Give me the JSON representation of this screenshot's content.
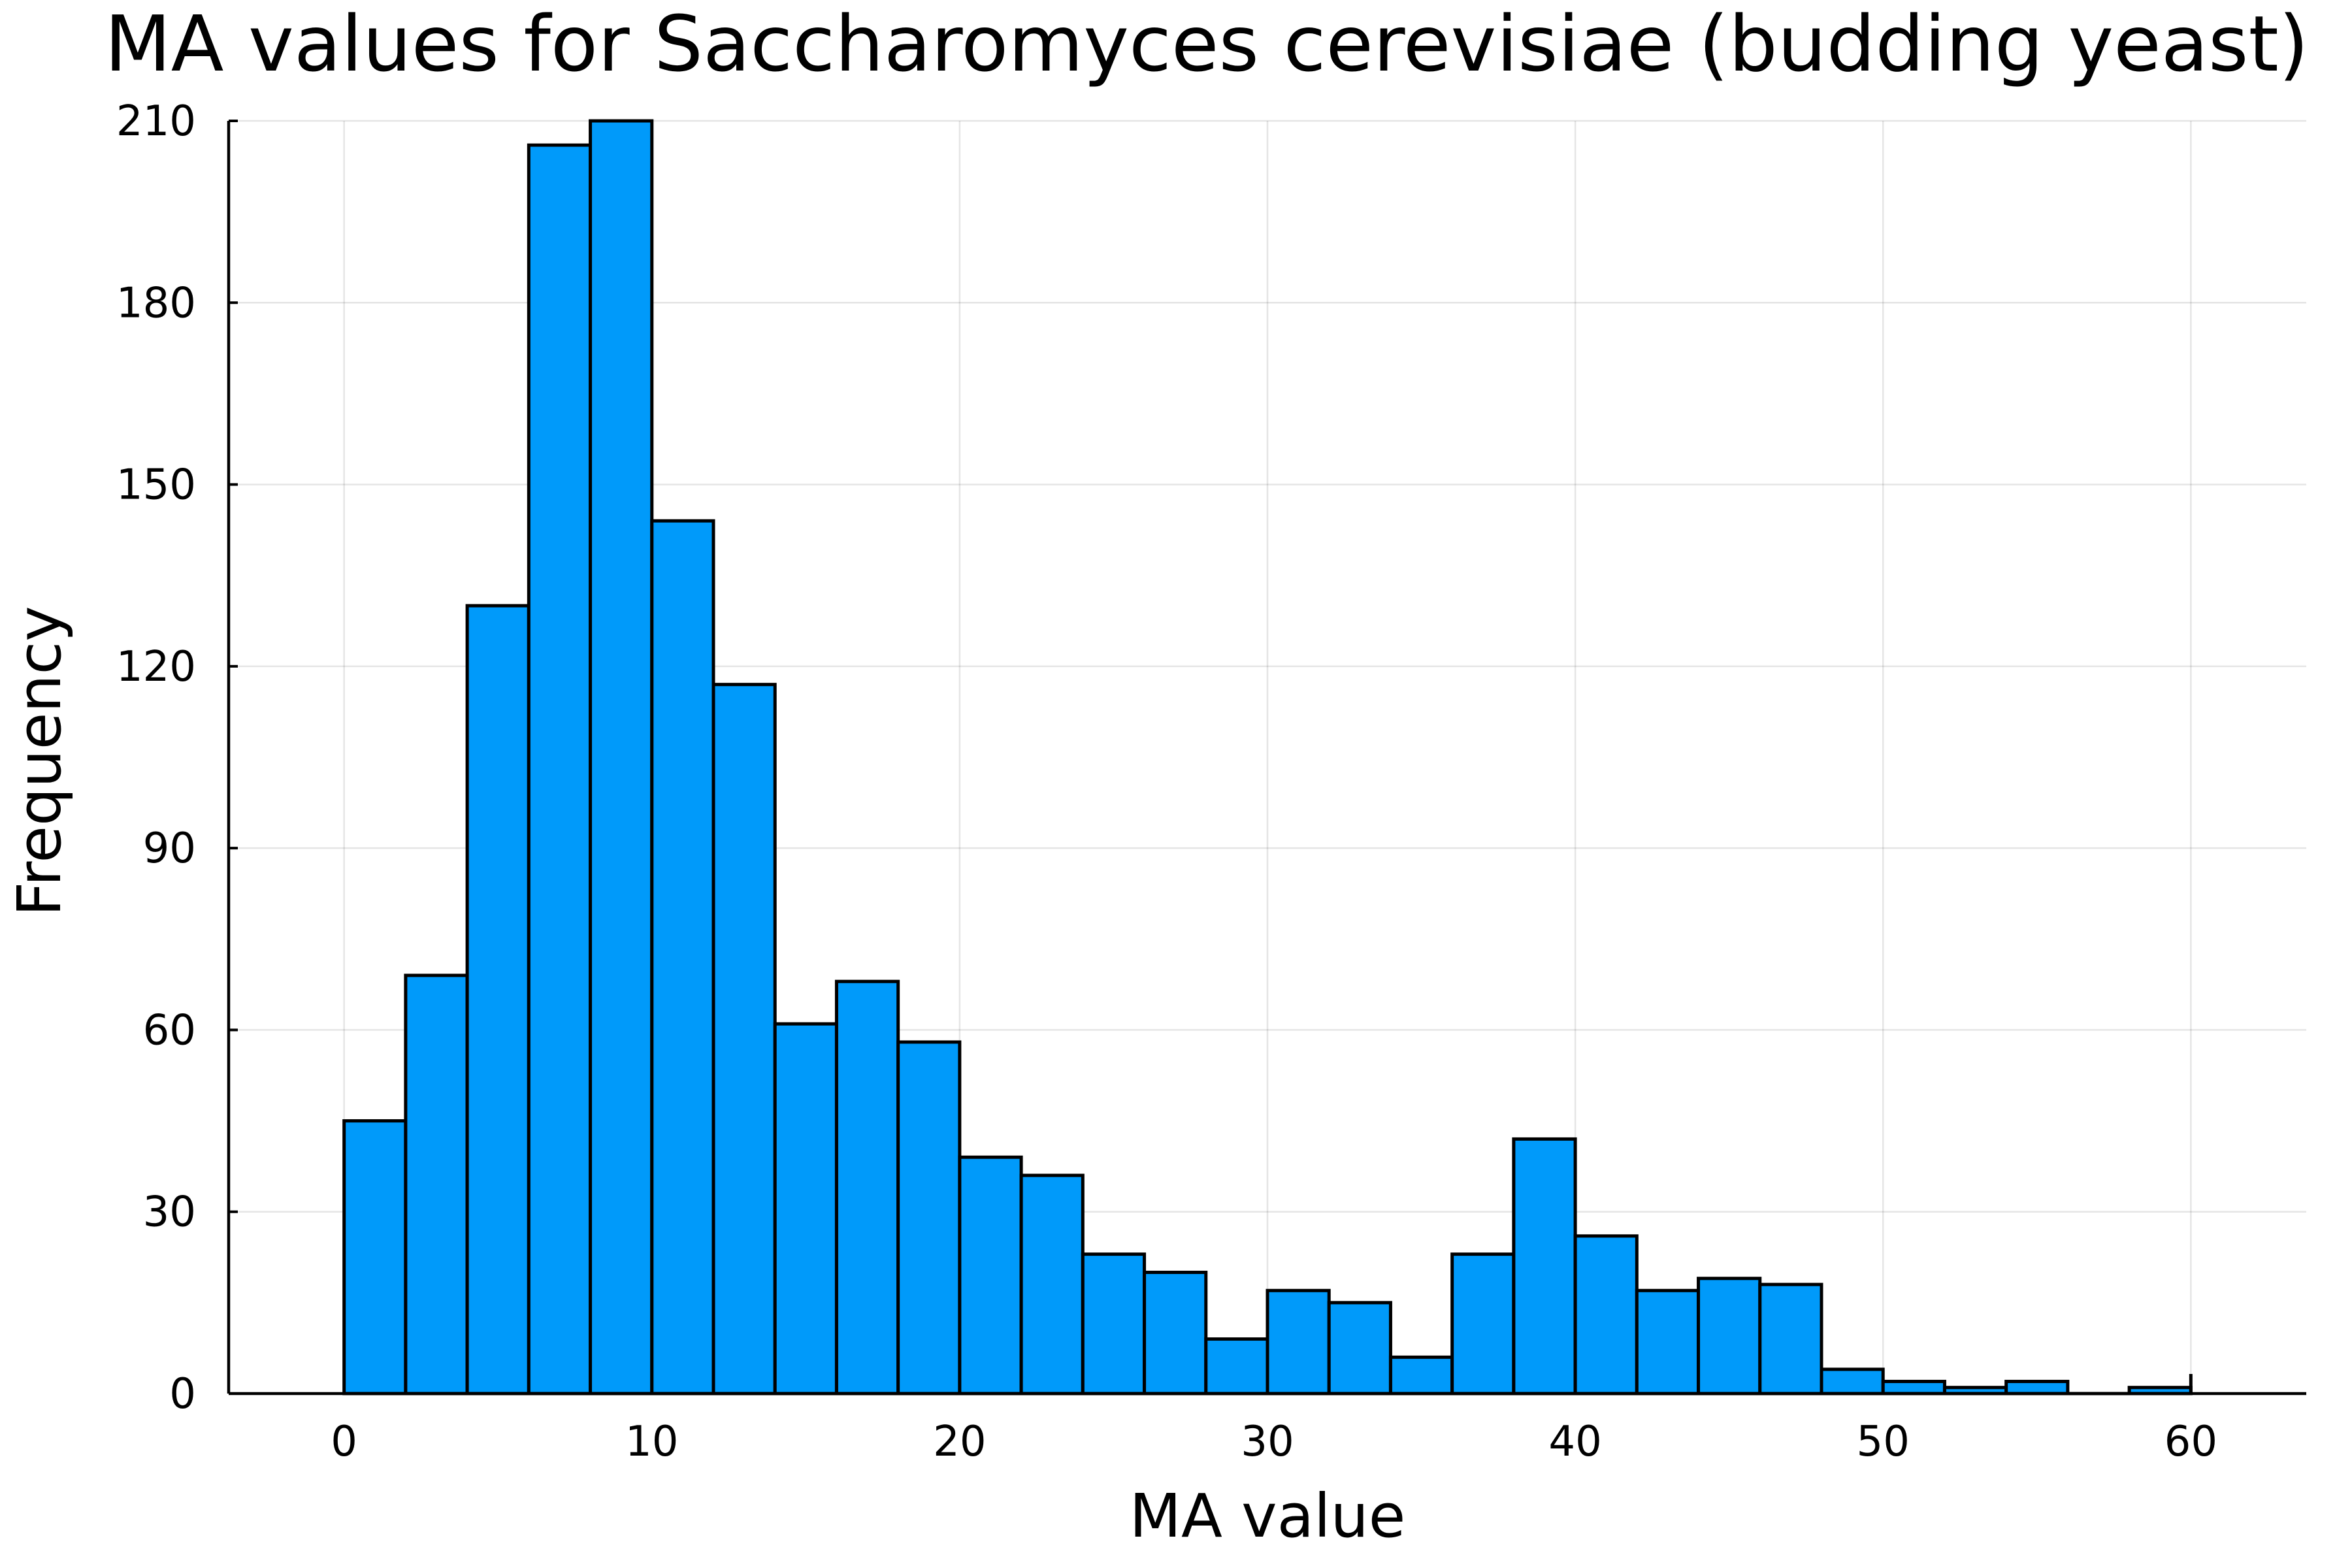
{
  "chart_data": {
    "type": "bar",
    "title": "MA values for Saccharomyces cerevisiae (budding yeast)",
    "xlabel": "MA value",
    "ylabel": "Frequency",
    "bar_color": "#009AFA",
    "grid": true,
    "legend": false,
    "xlim": [
      -3.75,
      63.75
    ],
    "ylim": [
      0,
      210
    ],
    "xticks": [
      0,
      10,
      20,
      30,
      40,
      50,
      60
    ],
    "yticks": [
      0,
      30,
      60,
      90,
      120,
      150,
      180,
      210
    ],
    "bin_width": 2,
    "bins": [
      {
        "start": 0,
        "end": 2,
        "count": 45
      },
      {
        "start": 2,
        "end": 4,
        "count": 69
      },
      {
        "start": 4,
        "end": 6,
        "count": 130
      },
      {
        "start": 6,
        "end": 8,
        "count": 206
      },
      {
        "start": 8,
        "end": 10,
        "count": 210
      },
      {
        "start": 10,
        "end": 12,
        "count": 144
      },
      {
        "start": 12,
        "end": 14,
        "count": 117
      },
      {
        "start": 14,
        "end": 16,
        "count": 61
      },
      {
        "start": 16,
        "end": 18,
        "count": 68
      },
      {
        "start": 18,
        "end": 20,
        "count": 58
      },
      {
        "start": 20,
        "end": 22,
        "count": 39
      },
      {
        "start": 22,
        "end": 24,
        "count": 36
      },
      {
        "start": 24,
        "end": 26,
        "count": 23
      },
      {
        "start": 26,
        "end": 28,
        "count": 20
      },
      {
        "start": 28,
        "end": 30,
        "count": 9
      },
      {
        "start": 30,
        "end": 32,
        "count": 17
      },
      {
        "start": 32,
        "end": 34,
        "count": 15
      },
      {
        "start": 34,
        "end": 36,
        "count": 6
      },
      {
        "start": 36,
        "end": 38,
        "count": 23
      },
      {
        "start": 38,
        "end": 40,
        "count": 42
      },
      {
        "start": 40,
        "end": 42,
        "count": 26
      },
      {
        "start": 42,
        "end": 44,
        "count": 17
      },
      {
        "start": 44,
        "end": 46,
        "count": 19
      },
      {
        "start": 46,
        "end": 48,
        "count": 18
      },
      {
        "start": 48,
        "end": 50,
        "count": 4
      },
      {
        "start": 50,
        "end": 52,
        "count": 2
      },
      {
        "start": 52,
        "end": 54,
        "count": 1
      },
      {
        "start": 54,
        "end": 56,
        "count": 2
      },
      {
        "start": 56,
        "end": 58,
        "count": 0
      },
      {
        "start": 58,
        "end": 60,
        "count": 1
      }
    ]
  }
}
